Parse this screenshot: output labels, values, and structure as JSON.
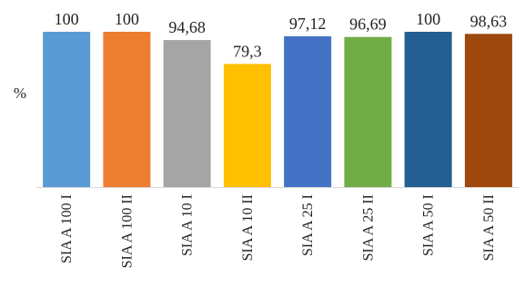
{
  "chart_data": {
    "type": "bar",
    "title": "",
    "xlabel": "",
    "ylabel": "%",
    "ylim": [
      0,
      100
    ],
    "grid": false,
    "legend": "none",
    "categories": [
      "SIA A 100 I",
      "SIA A 100 II",
      "SIA A 10 I",
      "SIA A 10 II",
      "SIA A 25 I",
      "SIA A 25 II",
      "SIA A 50 I",
      "SIA A 50 II"
    ],
    "values": [
      100,
      100,
      94.68,
      79.3,
      97.12,
      96.69,
      100,
      98.63
    ],
    "value_labels": [
      "100",
      "100",
      "94,68",
      "79,3",
      "97,12",
      "96,69",
      "100",
      "98,63"
    ],
    "colors": [
      "#5B9BD5",
      "#ED7D31",
      "#A5A5A5",
      "#FFC000",
      "#4472C4",
      "#70AD47",
      "#255E91",
      "#9E480E"
    ]
  }
}
